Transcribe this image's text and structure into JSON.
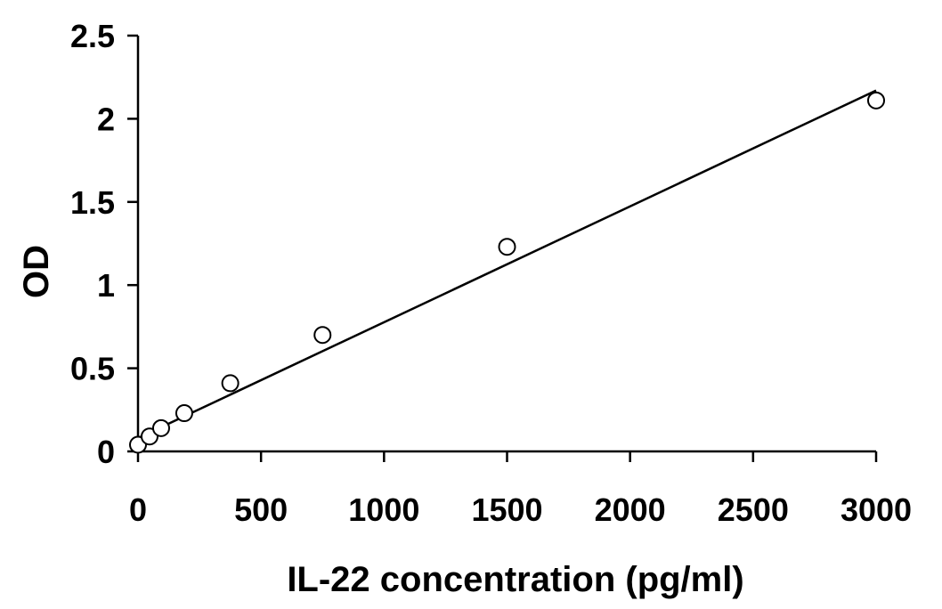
{
  "chart_data": {
    "type": "scatter",
    "title": "",
    "xlabel": "IL-22 concentration (pg/ml)",
    "ylabel": "OD",
    "xlim": [
      0,
      3000
    ],
    "ylim": [
      0,
      2.5
    ],
    "x_ticks": [
      0,
      500,
      1000,
      1500,
      2000,
      2500,
      3000
    ],
    "y_ticks": [
      0,
      0.5,
      1,
      1.5,
      2,
      2.5
    ],
    "x_tick_labels": [
      "0",
      "500",
      "1000",
      "1500",
      "2000",
      "2500",
      "3000"
    ],
    "y_tick_labels": [
      "0",
      "0.5",
      "1",
      "1.5",
      "2",
      "2.5"
    ],
    "grid": false,
    "legend": "none",
    "series": [
      {
        "x": [
          0,
          47,
          94,
          188,
          375,
          750,
          1500,
          3000
        ],
        "y": [
          0.04,
          0.09,
          0.14,
          0.23,
          0.41,
          0.7,
          1.23,
          2.11
        ],
        "marker": "open-circle"
      }
    ],
    "trendline": {
      "type": "linear",
      "x": [
        0,
        3000
      ],
      "y": [
        0.08,
        2.17
      ]
    },
    "colors": {
      "axis": "#000000",
      "marker_fill": "#ffffff",
      "marker_stroke": "#000000",
      "line": "#000000"
    }
  }
}
